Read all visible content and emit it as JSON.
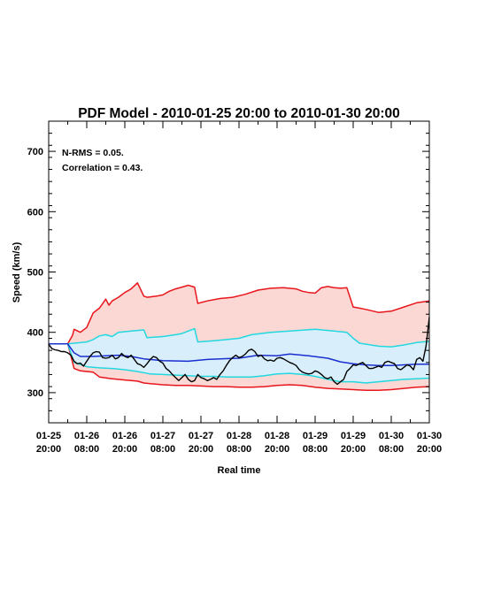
{
  "chart_data": {
    "type": "line",
    "title": "PDF Model - 2010-01-25 20:00 to 2010-01-30 20:00",
    "xlabel": "Real time",
    "ylabel": "Speed (km/s)",
    "ylim": [
      250,
      750
    ],
    "xlim": [
      "2010-01-25 20:00",
      "2010-01-30 20:00"
    ],
    "grid": false,
    "legend": "none",
    "annotations": [
      "N-RMS = 0.05.",
      "Correlation = 0.43."
    ],
    "yticks": [
      300,
      400,
      500,
      600,
      700
    ],
    "xtick_labels": [
      {
        "date": "01-25",
        "time": "20:00",
        "hours": 0
      },
      {
        "date": "01-26",
        "time": "08:00",
        "hours": 12
      },
      {
        "date": "01-26",
        "time": "20:00",
        "hours": 24
      },
      {
        "date": "01-27",
        "time": "08:00",
        "hours": 36
      },
      {
        "date": "01-27",
        "time": "20:00",
        "hours": 48
      },
      {
        "date": "01-28",
        "time": "08:00",
        "hours": 60
      },
      {
        "date": "01-28",
        "time": "20:00",
        "hours": 72
      },
      {
        "date": "01-29",
        "time": "08:00",
        "hours": 84
      },
      {
        "date": "01-29",
        "time": "20:00",
        "hours": 96
      },
      {
        "date": "01-30",
        "time": "08:00",
        "hours": 108
      },
      {
        "date": "01-30",
        "time": "20:00",
        "hours": 120
      }
    ],
    "colors": {
      "outer_band_fill": "#fcd8d4",
      "inner_band_fill": "#d8eefa",
      "outer_bound": "#e8161c",
      "inner_bound": "#22d8e0",
      "median": "#1a2fd0",
      "observed": "#000000"
    },
    "series": [
      {
        "role": "outer_upper",
        "color": "#e8161c",
        "x": [
          0,
          6,
          7.5,
          8,
          10,
          12,
          14,
          16,
          18,
          19,
          20,
          22,
          24,
          26,
          28,
          30,
          31,
          34,
          36,
          38,
          40,
          42,
          44,
          46,
          47,
          50,
          54,
          58,
          62,
          66,
          70,
          74,
          78,
          80,
          82,
          84,
          86,
          88,
          90,
          92,
          94,
          96,
          98,
          100,
          104,
          108,
          112,
          116,
          120
        ],
        "y": [
          381,
          381,
          395,
          405,
          400,
          408,
          432,
          440,
          455,
          445,
          452,
          458,
          466,
          472,
          482,
          460,
          458,
          460,
          462,
          468,
          472,
          475,
          478,
          475,
          448,
          452,
          456,
          458,
          463,
          470,
          473,
          474,
          472,
          468,
          466,
          465,
          474,
          476,
          474,
          473,
          474,
          442,
          440,
          438,
          433,
          435,
          442,
          449,
          452
        ]
      },
      {
        "role": "inner_upper",
        "color": "#22d8e0",
        "x": [
          0,
          6,
          8,
          12,
          14,
          16,
          18,
          20,
          22,
          26,
          30,
          31,
          36,
          40,
          42,
          46,
          47,
          52,
          56,
          60,
          64,
          70,
          76,
          84,
          90,
          94,
          96,
          98,
          104,
          108,
          112,
          116,
          120
        ],
        "y": [
          381,
          381,
          382,
          384,
          388,
          394,
          396,
          393,
          400,
          402,
          404,
          391,
          393,
          396,
          398,
          406,
          384,
          386,
          388,
          390,
          396,
          400,
          402,
          405,
          402,
          400,
          390,
          382,
          377,
          376,
          379,
          383,
          385
        ]
      },
      {
        "role": "median",
        "color": "#1a2fd0",
        "x": [
          0,
          6,
          8,
          10,
          14,
          18,
          22,
          26,
          30,
          36,
          44,
          50,
          54,
          60,
          66,
          72,
          76,
          82,
          88,
          92,
          96,
          100,
          104,
          108,
          112,
          116,
          120
        ],
        "y": [
          381,
          381,
          366,
          360,
          360,
          361,
          362,
          360,
          356,
          353,
          352,
          355,
          356,
          357,
          362,
          361,
          364,
          361,
          357,
          351,
          348,
          346,
          345,
          345,
          346,
          347,
          347
        ]
      },
      {
        "role": "inner_lower",
        "color": "#22d8e0",
        "x": [
          0,
          6,
          8,
          12,
          16,
          20,
          24,
          28,
          32,
          36,
          40,
          44,
          48,
          52,
          56,
          60,
          64,
          68,
          72,
          76,
          80,
          84,
          88,
          92,
          96,
          100,
          104,
          108,
          112,
          116,
          120
        ],
        "y": [
          381,
          381,
          350,
          343,
          341,
          340,
          338,
          335,
          331,
          330,
          329,
          328,
          327,
          327,
          326,
          326,
          326,
          328,
          331,
          332,
          330,
          327,
          322,
          318,
          318,
          316,
          318,
          320,
          322,
          323,
          324
        ]
      },
      {
        "role": "outer_lower",
        "color": "#e8161c",
        "x": [
          0,
          6,
          8,
          10,
          14,
          16,
          20,
          24,
          28,
          30,
          32,
          36,
          40,
          44,
          48,
          52,
          56,
          60,
          64,
          68,
          72,
          76,
          80,
          84,
          88,
          92,
          96,
          100,
          104,
          108,
          112,
          116,
          120
        ],
        "y": [
          381,
          381,
          340,
          336,
          334,
          326,
          323,
          321,
          319,
          316,
          315,
          313,
          312,
          312,
          311,
          310,
          310,
          309,
          309,
          310,
          312,
          313,
          312,
          309,
          307,
          306,
          305,
          304,
          304,
          305,
          307,
          309,
          310
        ]
      },
      {
        "role": "observed",
        "color": "#000000",
        "x": [
          0,
          1,
          2,
          3,
          4,
          5,
          6,
          7,
          8,
          9,
          10,
          11,
          12,
          13,
          14,
          15,
          16,
          17,
          18,
          19,
          20,
          21,
          22,
          23,
          24,
          25,
          26,
          27,
          28,
          29,
          30,
          31,
          32,
          33,
          34,
          35,
          36,
          37,
          38,
          39,
          40,
          41,
          42,
          43,
          44,
          45,
          46,
          47,
          48,
          49,
          50,
          51,
          52,
          53,
          54,
          55,
          56,
          57,
          58,
          59,
          60,
          61,
          62,
          63,
          64,
          65,
          66,
          67,
          68,
          69,
          70,
          71,
          72,
          73,
          74,
          75,
          76,
          77,
          78,
          79,
          80,
          81,
          82,
          83,
          84,
          85,
          86,
          87,
          88,
          89,
          90,
          91,
          92,
          93,
          94,
          95,
          96,
          97,
          98,
          99,
          100,
          101,
          102,
          103,
          104,
          105,
          106,
          107,
          108,
          109,
          110,
          111,
          112,
          113,
          114,
          115,
          116,
          117,
          118,
          119,
          120
        ],
        "y": [
          380,
          373,
          371,
          370,
          368,
          368,
          366,
          362,
          352,
          348,
          349,
          344,
          352,
          360,
          366,
          368,
          367,
          358,
          357,
          358,
          362,
          356,
          358,
          365,
          360,
          358,
          362,
          355,
          348,
          346,
          342,
          348,
          355,
          360,
          358,
          352,
          349,
          340,
          336,
          330,
          325,
          320,
          325,
          330,
          322,
          318,
          320,
          330,
          325,
          323,
          320,
          322,
          325,
          322,
          330,
          336,
          345,
          353,
          358,
          362,
          358,
          360,
          364,
          370,
          372,
          368,
          360,
          362,
          356,
          353,
          354,
          352,
          357,
          358,
          356,
          353,
          350,
          348,
          345,
          338,
          334,
          332,
          331,
          332,
          336,
          334,
          330,
          325,
          323,
          326,
          318,
          314,
          318,
          322,
          335,
          340,
          346,
          345,
          348,
          350,
          345,
          340,
          340,
          342,
          344,
          342,
          350,
          352,
          350,
          348,
          340,
          338,
          342,
          346,
          344,
          338,
          355,
          358,
          352,
          378,
          425
        ]
      }
    ]
  }
}
